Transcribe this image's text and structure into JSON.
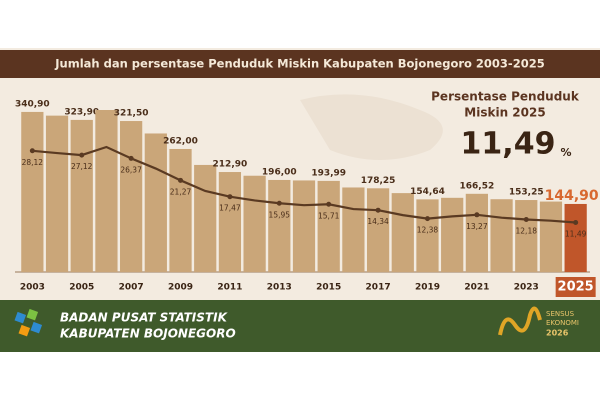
{
  "header": {
    "title": "Jumlah dan persentase Penduduk Miskin Kabupaten Bojonegoro 2003-2025"
  },
  "callout": {
    "line1": "Persentase Penduduk",
    "line2": "Miskin 2025",
    "value": "11,49",
    "unit": "%"
  },
  "chart_data": {
    "type": "bar-line",
    "categories": [
      "2003",
      null,
      "2005",
      null,
      "2007",
      null,
      "2009",
      null,
      "2011",
      null,
      "2013",
      null,
      "2015",
      null,
      "2017",
      null,
      "2019",
      null,
      "2021",
      null,
      "2023",
      null,
      "2025"
    ],
    "series": [
      {
        "type": "bar",
        "colors": [
          "#caa679",
          "#caa679",
          "#caa679",
          "#caa679",
          "#caa679",
          "#caa679",
          "#caa679",
          "#caa679",
          "#caa679",
          "#caa679",
          "#caa679",
          "#caa679",
          "#caa679",
          "#caa679",
          "#caa679",
          "#caa679",
          "#caa679",
          "#caa679",
          "#caa679",
          "#caa679",
          "#caa679",
          "#caa679",
          "#c0562a"
        ],
        "values": [
          340.9,
          333,
          323.9,
          345,
          321.5,
          295,
          262,
          228,
          212.9,
          205,
          196,
          195,
          193.99,
          180,
          178.25,
          168,
          154.64,
          158,
          166.52,
          155,
          153.25,
          150,
          144.9
        ],
        "value_labels": [
          "340,90",
          null,
          "323,90",
          null,
          "321,50",
          null,
          "262,00",
          null,
          "212,90",
          null,
          "196,00",
          null,
          "193,99",
          null,
          "178,25",
          null,
          "154,64",
          null,
          "166,52",
          null,
          "153,25",
          null,
          "144,90"
        ]
      },
      {
        "type": "line",
        "color": "#5a3a22",
        "values": [
          28.12,
          27.6,
          27.12,
          29.0,
          26.37,
          24.0,
          21.27,
          18.8,
          17.47,
          16.6,
          15.95,
          15.5,
          15.71,
          14.6,
          14.34,
          13.2,
          12.38,
          12.9,
          13.27,
          12.6,
          12.18,
          11.9,
          11.49
        ],
        "value_labels": [
          "28,12",
          null,
          "27,12",
          null,
          "26,37",
          null,
          "21,27",
          null,
          "17,47",
          null,
          "15,95",
          null,
          "15,71",
          null,
          "14,34",
          null,
          "12,38",
          null,
          "13,27",
          null,
          "12,18",
          null,
          "11,49"
        ]
      }
    ]
  },
  "footer": {
    "org1": "BADAN PUSAT STATISTIK",
    "org2": "KABUPATEN BOJONEGORO",
    "sensus1": "SENSUS",
    "sensus2": "EKONOMI",
    "sensus3": "2026"
  }
}
